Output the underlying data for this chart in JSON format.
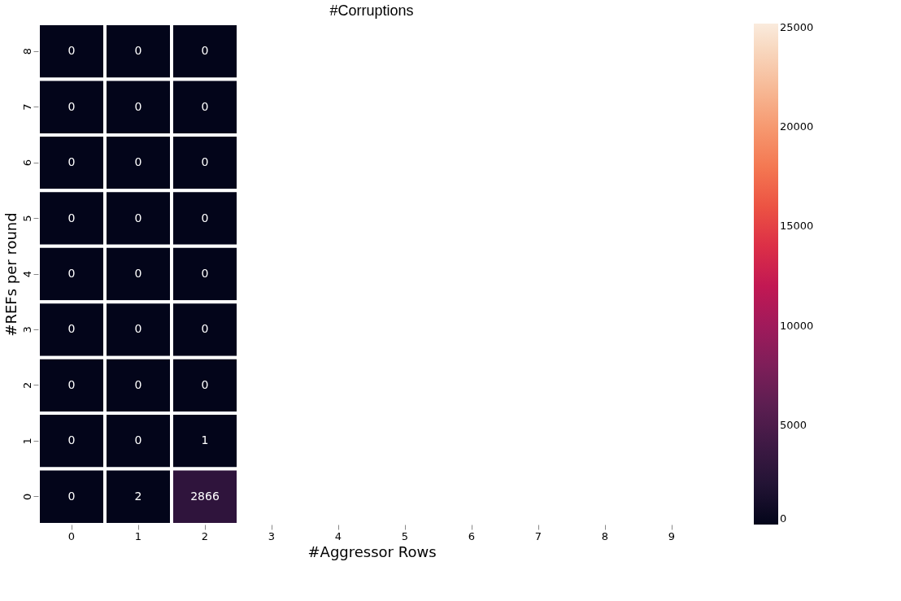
{
  "chart_data": {
    "type": "heatmap",
    "title": "#Corruptions",
    "xlabel": "#Aggressor Rows",
    "ylabel": "#REFs per round",
    "categories": [
      "0",
      "1",
      "2",
      "3",
      "4",
      "5",
      "6",
      "7",
      "8",
      "9"
    ],
    "y_categories": [
      "8",
      "7",
      "6",
      "5",
      "4",
      "3",
      "2",
      "1",
      "0"
    ],
    "cells": [
      [
        0,
        0,
        0,
        null,
        null,
        null,
        null,
        null,
        null,
        null
      ],
      [
        0,
        0,
        0,
        null,
        null,
        null,
        null,
        null,
        null,
        null
      ],
      [
        0,
        0,
        0,
        null,
        null,
        null,
        null,
        null,
        null,
        null
      ],
      [
        0,
        0,
        0,
        null,
        null,
        null,
        null,
        null,
        null,
        null
      ],
      [
        0,
        0,
        0,
        null,
        null,
        null,
        null,
        null,
        null,
        null
      ],
      [
        0,
        0,
        0,
        null,
        null,
        null,
        null,
        null,
        null,
        null
      ],
      [
        0,
        0,
        0,
        null,
        null,
        null,
        null,
        null,
        null,
        null
      ],
      [
        0,
        0,
        1,
        null,
        null,
        null,
        null,
        null,
        null,
        null
      ],
      [
        0,
        2,
        2866,
        null,
        null,
        null,
        null,
        null,
        null,
        null
      ]
    ],
    "clim": [
      0,
      25200
    ],
    "cticks": [
      0,
      5000,
      10000,
      15000,
      20000,
      25000
    ],
    "data_labels": true,
    "grid": false
  }
}
